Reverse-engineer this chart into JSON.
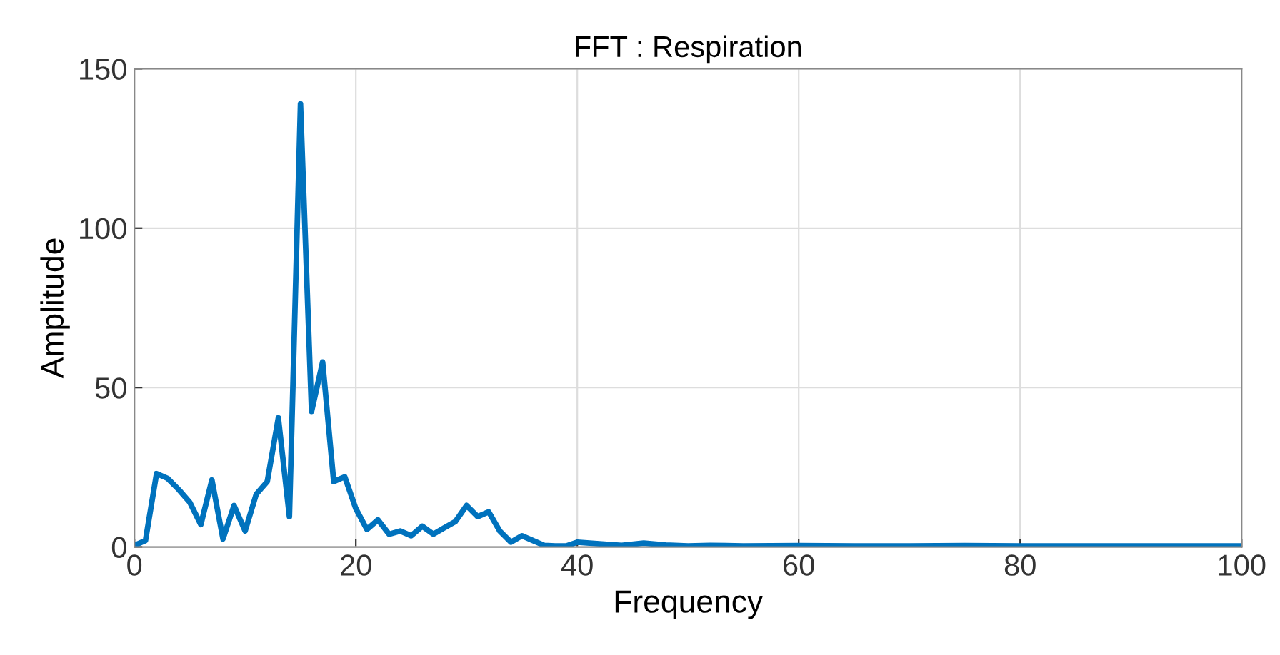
{
  "chart_data": {
    "type": "line",
    "title": "FFT : Respiration",
    "xlabel": "Frequency",
    "ylabel": "Amplitude",
    "x": [
      0,
      1,
      2,
      3,
      4,
      5,
      6,
      7,
      8,
      9,
      10,
      11,
      12,
      13,
      14,
      15,
      16,
      17,
      18,
      19,
      20,
      21,
      22,
      23,
      24,
      25,
      26,
      27,
      28,
      29,
      30,
      31,
      32,
      33,
      34,
      35,
      36,
      37,
      38,
      39,
      40,
      42,
      44,
      46,
      48,
      50,
      52,
      55,
      60,
      65,
      70,
      75,
      80,
      85,
      90,
      95,
      100
    ],
    "series": [
      {
        "color": "#0072bd",
        "values": [
          0.5,
          2,
          23,
          21.5,
          18,
          14,
          7,
          21,
          2.5,
          13,
          5,
          16.5,
          20.5,
          40.5,
          9.5,
          139,
          42.5,
          58,
          20.5,
          22,
          12,
          5.5,
          8.5,
          4,
          5,
          3.5,
          6.5,
          4,
          6,
          8,
          13,
          9.5,
          11,
          5,
          1.5,
          3.5,
          2,
          0.5,
          0.3,
          0.3,
          1.5,
          1,
          0.5,
          1.2,
          0.6,
          0.3,
          0.5,
          0.3,
          0.4,
          0.3,
          0.3,
          0.4,
          0.3,
          0.3,
          0.3,
          0.3,
          0.3
        ]
      }
    ],
    "xlim": [
      0,
      100
    ],
    "xticks": [
      0,
      20,
      40,
      60,
      80,
      100
    ],
    "ylim": [
      0,
      150
    ],
    "yticks": [
      0,
      50,
      100,
      150
    ],
    "grid": true,
    "line_style": "solid",
    "marker": "none"
  }
}
